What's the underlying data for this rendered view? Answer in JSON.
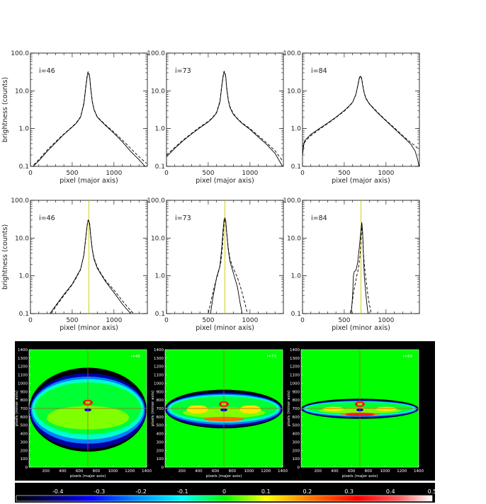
{
  "chart_data": [
    {
      "type": "line",
      "row": 1,
      "label": "i=46",
      "xlabel": "pixel (major axis)",
      "ylabel": "brightness (counts)",
      "xlim": [
        0,
        1400
      ],
      "ylim": [
        0.1,
        100
      ],
      "yscale": "log",
      "xticks": [
        "0",
        "500",
        "1000"
      ],
      "yticks": [
        "0.1",
        "1.0",
        "10.0",
        "100.0"
      ],
      "series": [
        {
          "style": "solid",
          "x": [
            0,
            100,
            200,
            300,
            400,
            500,
            550,
            600,
            640,
            660,
            680,
            690,
            700,
            710,
            720,
            740,
            760,
            800,
            850,
            900,
            1000,
            1100,
            1200,
            1300,
            1390
          ],
          "y": [
            0.085,
            0.14,
            0.25,
            0.42,
            0.7,
            1.1,
            1.4,
            2.0,
            4.5,
            11,
            24,
            30,
            28,
            22,
            12,
            5.2,
            3.2,
            2.0,
            1.55,
            1.2,
            0.75,
            0.45,
            0.25,
            0.15,
            0.09
          ]
        },
        {
          "style": "dashed",
          "x": [
            0,
            100,
            200,
            300,
            400,
            500,
            550,
            600,
            640,
            660,
            680,
            690,
            700,
            710,
            720,
            740,
            760,
            800,
            850,
            900,
            1000,
            1100,
            1200,
            1300,
            1390
          ],
          "y": [
            0.09,
            0.15,
            0.27,
            0.45,
            0.72,
            1.12,
            1.45,
            2.05,
            4.8,
            12,
            26,
            32,
            30,
            23,
            13,
            5.4,
            3.3,
            2.05,
            1.6,
            1.25,
            0.8,
            0.5,
            0.3,
            0.18,
            0.12
          ]
        }
      ]
    },
    {
      "type": "line",
      "row": 1,
      "label": "i=73",
      "xlabel": "pixel (major axis)",
      "ylabel": "",
      "xlim": [
        0,
        1400
      ],
      "ylim": [
        0.1,
        100
      ],
      "yscale": "log",
      "xticks": [
        "0",
        "500",
        "1000"
      ],
      "yticks": [
        "0.1",
        "1.0",
        "10.0",
        "100.0"
      ],
      "series": [
        {
          "style": "solid",
          "x": [
            0,
            100,
            200,
            300,
            400,
            500,
            550,
            600,
            640,
            660,
            680,
            690,
            700,
            710,
            720,
            740,
            760,
            800,
            850,
            900,
            1000,
            1100,
            1200,
            1300,
            1390
          ],
          "y": [
            0.18,
            0.3,
            0.48,
            0.72,
            1.05,
            1.5,
            1.9,
            2.6,
            5,
            12,
            25,
            31,
            29,
            23,
            12,
            5.6,
            3.6,
            2.4,
            1.8,
            1.4,
            0.95,
            0.6,
            0.38,
            0.22,
            0.1
          ]
        },
        {
          "style": "dashed",
          "x": [
            0,
            100,
            200,
            300,
            400,
            500,
            550,
            600,
            640,
            660,
            680,
            690,
            700,
            710,
            720,
            740,
            760,
            800,
            850,
            900,
            1000,
            1100,
            1200,
            1300,
            1390
          ],
          "y": [
            0.2,
            0.32,
            0.5,
            0.75,
            1.1,
            1.55,
            1.95,
            2.7,
            5.3,
            13,
            27,
            33,
            31,
            24,
            13,
            5.9,
            3.8,
            2.5,
            1.85,
            1.45,
            1.0,
            0.65,
            0.42,
            0.26,
            0.14
          ]
        }
      ]
    },
    {
      "type": "line",
      "row": 1,
      "label": "i=84",
      "xlabel": "pixel (major axis)",
      "ylabel": "",
      "xlim": [
        0,
        1400
      ],
      "ylim": [
        0.1,
        100
      ],
      "yscale": "log",
      "xticks": [
        "0",
        "500",
        "1000"
      ],
      "yticks": [
        "0.1",
        "1.0",
        "10.0",
        "100.0"
      ],
      "series": [
        {
          "style": "solid",
          "x": [
            0,
            20,
            50,
            100,
            200,
            300,
            400,
            500,
            550,
            600,
            640,
            660,
            680,
            690,
            700,
            710,
            720,
            740,
            760,
            800,
            850,
            900,
            1000,
            1100,
            1200,
            1300,
            1350,
            1380,
            1395
          ],
          "y": [
            0.2,
            0.45,
            0.55,
            0.7,
            1.0,
            1.4,
            2.0,
            3.0,
            3.8,
            5.0,
            8,
            13,
            21,
            24,
            23,
            20,
            14,
            8.5,
            6.2,
            4.5,
            3.4,
            2.6,
            1.6,
            1.0,
            0.62,
            0.38,
            0.25,
            0.15,
            0.1
          ]
        },
        {
          "style": "dashed",
          "x": [
            0,
            20,
            50,
            100,
            200,
            300,
            400,
            500,
            550,
            600,
            640,
            660,
            680,
            690,
            700,
            710,
            720,
            740,
            760,
            800,
            850,
            900,
            1000,
            1100,
            1200,
            1300,
            1350,
            1380,
            1395
          ],
          "y": [
            0.32,
            0.42,
            0.5,
            0.65,
            0.95,
            1.35,
            1.95,
            2.9,
            3.7,
            4.9,
            8.2,
            13.5,
            22,
            25,
            24,
            21,
            14.5,
            8.8,
            6.4,
            4.6,
            3.5,
            2.7,
            1.65,
            1.05,
            0.65,
            0.42,
            0.35,
            0.3,
            0.28
          ]
        }
      ]
    },
    {
      "type": "line",
      "row": 2,
      "label": "i=46",
      "xlabel": "pixel (minor axis)",
      "ylabel": "brightness (counts)",
      "xlim": [
        0,
        1400
      ],
      "ylim": [
        0.1,
        100
      ],
      "yscale": "log",
      "xticks": [
        "0",
        "500",
        "1000"
      ],
      "yticks": [
        "0.1",
        "1.0",
        "10.0",
        "100.0"
      ],
      "vline": 700,
      "series": [
        {
          "style": "solid",
          "x": [
            200,
            300,
            400,
            500,
            550,
            600,
            640,
            660,
            680,
            690,
            700,
            710,
            720,
            740,
            760,
            800,
            850,
            900,
            1000,
            1100,
            1200,
            1240
          ],
          "y": [
            0.08,
            0.16,
            0.32,
            0.6,
            0.95,
            1.5,
            3.5,
            9,
            22,
            29,
            28,
            22,
            12,
            5,
            2.8,
            1.6,
            1.05,
            0.7,
            0.36,
            0.18,
            0.1,
            0.08
          ]
        },
        {
          "style": "dashed",
          "x": [
            220,
            300,
            400,
            500,
            550,
            600,
            640,
            660,
            680,
            690,
            700,
            710,
            720,
            740,
            760,
            800,
            850,
            900,
            1000,
            1100,
            1200,
            1280
          ],
          "y": [
            0.08,
            0.15,
            0.3,
            0.58,
            0.9,
            1.45,
            3.6,
            9.5,
            23,
            30,
            29,
            23,
            12.5,
            5.2,
            3.0,
            1.7,
            1.1,
            0.75,
            0.42,
            0.22,
            0.12,
            0.08
          ]
        }
      ]
    },
    {
      "type": "line",
      "row": 2,
      "label": "i=73",
      "xlabel": "pixel (minor axis)",
      "ylabel": "",
      "xlim": [
        0,
        1400
      ],
      "ylim": [
        0.1,
        100
      ],
      "yscale": "log",
      "xticks": [
        "0",
        "500",
        "1000"
      ],
      "yticks": [
        "0.1",
        "1.0",
        "10.0",
        "100.0"
      ],
      "vline": 700,
      "series": [
        {
          "style": "solid",
          "x": [
            520,
            560,
            600,
            640,
            660,
            680,
            690,
            700,
            710,
            720,
            740,
            760,
            800,
            850,
            880,
            900,
            910
          ],
          "y": [
            0.08,
            0.3,
            0.9,
            1.8,
            5,
            18,
            31,
            34,
            28,
            14,
            5,
            2.4,
            1.2,
            0.5,
            0.2,
            0.12,
            0.08
          ]
        },
        {
          "style": "dashed",
          "x": [
            490,
            540,
            580,
            620,
            650,
            670,
            690,
            700,
            710,
            720,
            740,
            760,
            800,
            850,
            900,
            950,
            980
          ],
          "y": [
            0.08,
            0.25,
            0.6,
            1.2,
            2.2,
            6,
            26,
            32,
            27,
            15,
            5.5,
            2.8,
            1.6,
            0.9,
            0.4,
            0.15,
            0.08
          ]
        }
      ]
    },
    {
      "type": "line",
      "row": 2,
      "label": "i=84",
      "xlabel": "pixel (minor axis)",
      "ylabel": "",
      "xlim": [
        0,
        1400
      ],
      "ylim": [
        0.1,
        100
      ],
      "yscale": "log",
      "xticks": [
        "0",
        "500",
        "1000"
      ],
      "yticks": [
        "0.1",
        "1.0",
        "10.0",
        "100.0"
      ],
      "vline": 700,
      "series": [
        {
          "style": "solid",
          "x": [
            580,
            600,
            610,
            620,
            640,
            660,
            680,
            700,
            710,
            720,
            730,
            740,
            760,
            780,
            790,
            800
          ],
          "y": [
            0.08,
            0.3,
            1.0,
            1.3,
            1.4,
            2.2,
            5.5,
            16,
            26,
            14,
            3.5,
            1.0,
            0.3,
            0.12,
            0.09,
            0.08
          ]
        },
        {
          "style": "dashed",
          "x": [
            560,
            590,
            610,
            630,
            650,
            670,
            690,
            700,
            710,
            720,
            730,
            740,
            760,
            780,
            800,
            820,
            840
          ],
          "y": [
            0.08,
            0.15,
            0.35,
            0.6,
            1.0,
            1.6,
            3.5,
            8,
            20,
            12,
            4,
            2.0,
            0.8,
            0.35,
            0.18,
            0.11,
            0.08
          ]
        }
      ]
    },
    {
      "type": "heatmap",
      "label": "i=46",
      "xlabel": "pixels (major axis)",
      "ylabel": "pixels (minor axis)",
      "xlim": [
        0,
        1400
      ],
      "ylim": [
        0,
        1400
      ],
      "xticks": [
        "200",
        "400",
        "600",
        "800",
        "1000",
        "1200",
        "1400"
      ],
      "yticks": [
        "0",
        "100",
        "200",
        "300",
        "400",
        "500",
        "600",
        "700",
        "800",
        "900",
        "1000",
        "1100",
        "1200",
        "1300",
        "1400"
      ],
      "disk_center": [
        700,
        700
      ],
      "disk_semi_axes": [
        700,
        500
      ],
      "background_value": 0.0
    },
    {
      "type": "heatmap",
      "label": "i=73",
      "xlabel": "pixels (major axis)",
      "ylabel": "pixels (minor axis)",
      "xlim": [
        0,
        1400
      ],
      "ylim": [
        0,
        1400
      ],
      "xticks": [
        "200",
        "400",
        "600",
        "800",
        "1000",
        "1200",
        "1400"
      ],
      "yticks": [
        "0",
        "100",
        "200",
        "300",
        "400",
        "500",
        "600",
        "700",
        "800",
        "900",
        "1000",
        "1100",
        "1200",
        "1300",
        "1400"
      ],
      "disk_center": [
        700,
        700
      ],
      "disk_semi_axes": [
        700,
        230
      ],
      "background_value": 0.0
    },
    {
      "type": "heatmap",
      "label": "i=84",
      "xlabel": "pixels (major axis)",
      "ylabel": "pixels (minor axis)",
      "xlim": [
        0,
        1400
      ],
      "ylim": [
        0,
        1400
      ],
      "xticks": [
        "200",
        "400",
        "600",
        "800",
        "1000",
        "1200",
        "1400"
      ],
      "yticks": [
        "0",
        "100",
        "200",
        "300",
        "400",
        "500",
        "600",
        "700",
        "800",
        "900",
        "1000",
        "1100",
        "1200",
        "1300",
        "1400"
      ],
      "disk_center": [
        700,
        700
      ],
      "disk_semi_axes": [
        700,
        120
      ],
      "background_value": 0.0
    }
  ],
  "colorbar": {
    "range": [
      -0.5,
      0.5
    ],
    "ticks": [
      "-0.4",
      "-0.3",
      "-0.2",
      "-0.1",
      "0",
      "0.1",
      "0.2",
      "0.3",
      "0.4",
      "0.5"
    ],
    "colormap": [
      [
        -0.5,
        "#000000"
      ],
      [
        -0.42,
        "#000060"
      ],
      [
        -0.32,
        "#0000ff"
      ],
      [
        -0.22,
        "#0080ff"
      ],
      [
        -0.1,
        "#00ffff"
      ],
      [
        0.0,
        "#00ff00"
      ],
      [
        0.1,
        "#ffff00"
      ],
      [
        0.2,
        "#ff8000"
      ],
      [
        0.32,
        "#ff0000"
      ],
      [
        0.42,
        "#ff6060"
      ],
      [
        0.5,
        "#ffffff"
      ]
    ]
  },
  "colors": {
    "line": "#000000",
    "vline": "#cccc00",
    "background": "#000000",
    "green": "#00ff00"
  }
}
